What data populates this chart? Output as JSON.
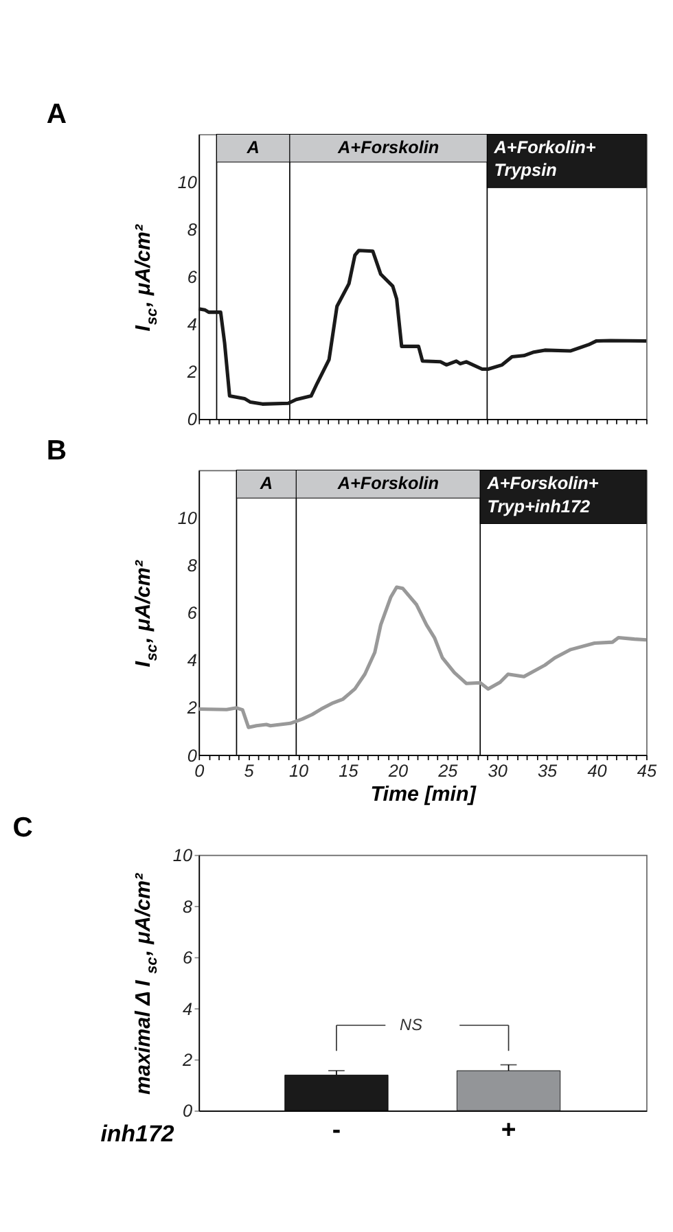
{
  "chart_data": [
    {
      "type": "line",
      "title": "A",
      "ylabel": "I$_{sc}$, μA/cm²",
      "xlim": [
        0,
        45
      ],
      "ylim": [
        0,
        12
      ],
      "yticks": [
        0,
        2,
        4,
        6,
        8,
        10
      ],
      "xticks": [
        0,
        {
          "value": 1,
          "label": null
        },
        {
          "value": 2,
          "label": null
        },
        {
          "value": 3,
          "label": null
        },
        {
          "value": 4,
          "label": null
        },
        5,
        {
          "value": 6,
          "label": null
        },
        {
          "value": 7,
          "label": null
        },
        {
          "value": 8,
          "label": null
        },
        {
          "value": 9,
          "label": null
        },
        10,
        {
          "value": 11,
          "label": null
        },
        {
          "value": 12,
          "label": null
        },
        {
          "value": 13,
          "label": null
        },
        {
          "value": 14,
          "label": null
        },
        15,
        {
          "value": 16,
          "label": null
        },
        {
          "value": 17,
          "label": null
        },
        {
          "value": 18,
          "label": null
        },
        {
          "value": 19,
          "label": null
        },
        20,
        {
          "value": 21,
          "label": null
        },
        {
          "value": 22,
          "label": null
        },
        {
          "value": 23,
          "label": null
        },
        {
          "value": 24,
          "label": null
        },
        25,
        {
          "value": 26,
          "label": null
        },
        {
          "value": 27,
          "label": null
        },
        {
          "value": 28,
          "label": null
        },
        {
          "value": 29,
          "label": null
        },
        30,
        {
          "value": 31,
          "label": null
        },
        {
          "value": 32,
          "label": null
        },
        {
          "value": 33,
          "label": null
        },
        {
          "value": 34,
          "label": null
        },
        35,
        {
          "value": 36,
          "label": null
        },
        {
          "value": 37,
          "label": null
        },
        {
          "value": 38,
          "label": null
        },
        {
          "value": 39,
          "label": null
        },
        40,
        {
          "value": 41,
          "label": null
        },
        {
          "value": 42,
          "label": null
        },
        {
          "value": 43,
          "label": null
        },
        {
          "value": 44,
          "label": null
        },
        45
      ],
      "tick_labels": "y",
      "bands": [
        {
          "axis": "x",
          "from": 1.8,
          "to": 9.15,
          "label": "A",
          "color": "#c8c9cb"
        },
        {
          "axis": "x",
          "from": 9.15,
          "to": 29,
          "label": "A+Forskolin",
          "color": "#c8c9cb"
        },
        {
          "axis": "x",
          "from": 29,
          "to": 45,
          "label": "A+Forkolin+\nTrypsin",
          "color": "#1a1a1a"
        }
      ],
      "series": [
        {
          "color": "#1a1a1a",
          "x": [
            0,
            0.6,
            1.0,
            2.2,
            2.6,
            3.1,
            4.6,
            5.2,
            6.4,
            9.0,
            9.8,
            11.3,
            11.9,
            13.1,
            13.9,
            15.1,
            15.7,
            16.1,
            17.5,
            18.3,
            19.5,
            19.9,
            20.4,
            22.1,
            22.5,
            24.3,
            24.9,
            25.9,
            26.3,
            26.9,
            28.5,
            29.1,
            30.5,
            31.5,
            32.7,
            33.7,
            34.8,
            37.4,
            39.2,
            40.0,
            41.4,
            45
          ],
          "values": [
            4.64,
            4.6,
            4.5,
            4.5,
            3.2,
            0.97,
            0.86,
            0.71,
            0.63,
            0.66,
            0.82,
            0.97,
            1.5,
            2.5,
            4.75,
            5.7,
            6.9,
            7.1,
            7.07,
            6.1,
            5.6,
            5.06,
            3.06,
            3.06,
            2.44,
            2.41,
            2.28,
            2.44,
            2.33,
            2.41,
            2.1,
            2.1,
            2.28,
            2.62,
            2.67,
            2.82,
            2.9,
            2.87,
            3.13,
            3.29,
            3.3,
            3.29
          ]
        }
      ]
    },
    {
      "type": "line",
      "title": "B",
      "ylabel": "I$_{sc}$, μA/cm²",
      "xlabel": "Time [min]",
      "xlim": [
        0,
        45
      ],
      "ylim": [
        0,
        12
      ],
      "yticks": [
        0,
        2,
        4,
        6,
        8,
        10
      ],
      "xticks": [
        0,
        {
          "value": 1,
          "label": null
        },
        {
          "value": 2,
          "label": null
        },
        {
          "value": 3,
          "label": null
        },
        {
          "value": 4,
          "label": null
        },
        5,
        {
          "value": 6,
          "label": null
        },
        {
          "value": 7,
          "label": null
        },
        {
          "value": 8,
          "label": null
        },
        {
          "value": 9,
          "label": null
        },
        10,
        {
          "value": 11,
          "label": null
        },
        {
          "value": 12,
          "label": null
        },
        {
          "value": 13,
          "label": null
        },
        {
          "value": 14,
          "label": null
        },
        15,
        {
          "value": 16,
          "label": null
        },
        {
          "value": 17,
          "label": null
        },
        {
          "value": 18,
          "label": null
        },
        {
          "value": 19,
          "label": null
        },
        20,
        {
          "value": 21,
          "label": null
        },
        {
          "value": 22,
          "label": null
        },
        {
          "value": 23,
          "label": null
        },
        {
          "value": 24,
          "label": null
        },
        25,
        {
          "value": 26,
          "label": null
        },
        {
          "value": 27,
          "label": null
        },
        {
          "value": 28,
          "label": null
        },
        {
          "value": 29,
          "label": null
        },
        30,
        {
          "value": 31,
          "label": null
        },
        {
          "value": 32,
          "label": null
        },
        {
          "value": 33,
          "label": null
        },
        {
          "value": 34,
          "label": null
        },
        35,
        {
          "value": 36,
          "label": null
        },
        {
          "value": 37,
          "label": null
        },
        {
          "value": 38,
          "label": null
        },
        {
          "value": 39,
          "label": null
        },
        40,
        {
          "value": 41,
          "label": null
        },
        {
          "value": 42,
          "label": null
        },
        {
          "value": 43,
          "label": null
        },
        {
          "value": 44,
          "label": null
        },
        45
      ],
      "bands": [
        {
          "axis": "x",
          "from": 3.8,
          "to": 9.8,
          "label": "A",
          "color": "#c8c9cb"
        },
        {
          "axis": "x",
          "from": 9.8,
          "to": 28.3,
          "label": "A+Forskolin",
          "color": "#c8c9cb"
        },
        {
          "axis": "x",
          "from": 28.3,
          "to": 45,
          "label": "A+Forskolin+\nTryp+inh172",
          "color": "#1a1a1a"
        }
      ],
      "series": [
        {
          "color": "#999999",
          "x": [
            0,
            2.8,
            3.8,
            4.4,
            5.0,
            5.8,
            6.8,
            7.2,
            9.2,
            10.4,
            11.4,
            12.3,
            13.5,
            14.5,
            15.7,
            16.7,
            17.7,
            18.3,
            19.3,
            19.9,
            20.5,
            21.9,
            22.9,
            23.7,
            24.5,
            25.7,
            26.9,
            28.3,
            29.1,
            30.3,
            31.1,
            32.7,
            34.8,
            35.8,
            37.4,
            39.8,
            41.6,
            42.2,
            43.8,
            45
          ],
          "values": [
            1.93,
            1.91,
            1.98,
            1.9,
            1.16,
            1.23,
            1.28,
            1.23,
            1.33,
            1.51,
            1.7,
            1.93,
            2.19,
            2.35,
            2.78,
            3.4,
            4.32,
            5.48,
            6.64,
            7.07,
            7.02,
            6.33,
            5.48,
            4.94,
            4.09,
            3.47,
            3.01,
            3.04,
            2.78,
            3.06,
            3.4,
            3.3,
            3.78,
            4.09,
            4.44,
            4.71,
            4.75,
            4.94,
            4.88,
            4.85
          ]
        }
      ]
    },
    {
      "type": "bar",
      "title": "C",
      "ylabel": "maximal Δ I$_{sc}$, μA/cm²",
      "xlabel": "inh172",
      "categories": [
        "-",
        "+"
      ],
      "values": [
        1.39,
        1.56
      ],
      "errors": [
        0.17,
        0.23
      ],
      "colors": [
        "#1a1a1a",
        "#939598"
      ],
      "ylim": [
        0,
        10
      ],
      "yticks": [
        0,
        2,
        4,
        6,
        8,
        10
      ],
      "annotations": [
        "NS"
      ]
    }
  ]
}
